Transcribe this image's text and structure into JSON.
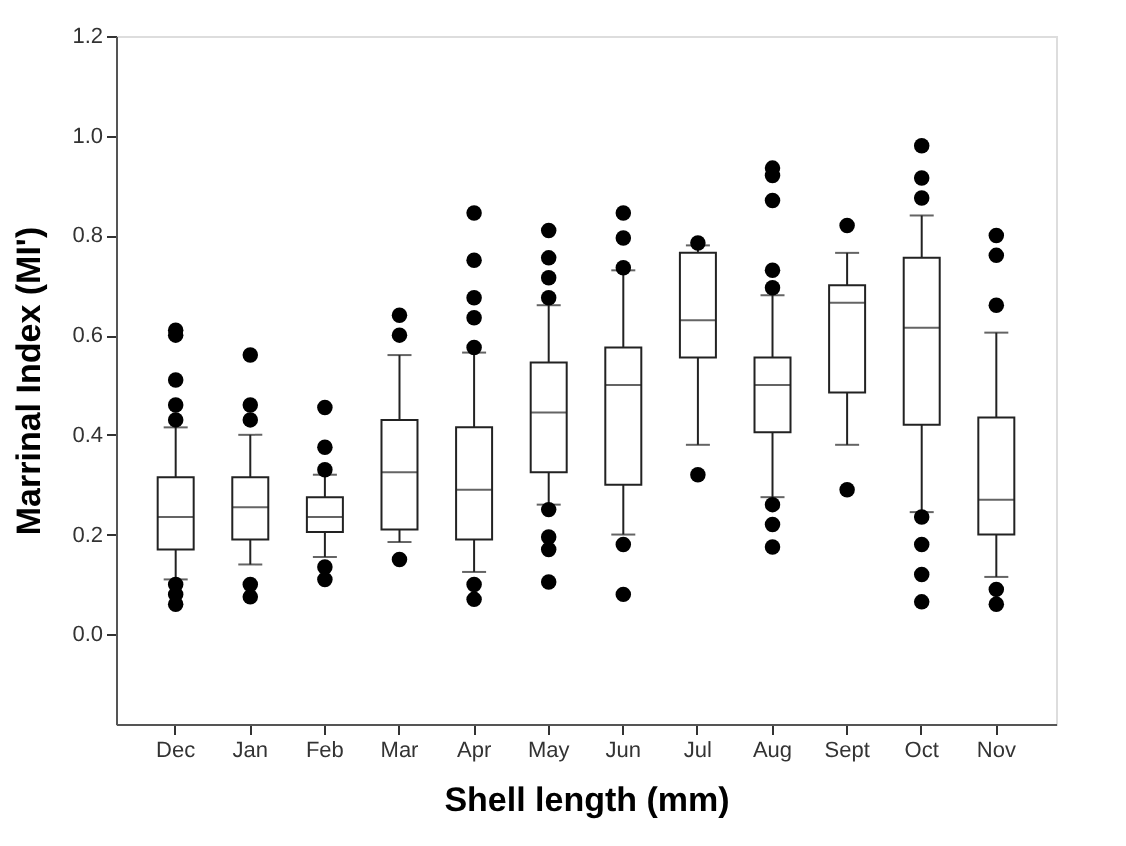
{
  "chart_data": {
    "type": "box",
    "xlabel": "Shell length (mm)",
    "ylabel": "Marrinal Index (MI')",
    "categories": [
      "Dec",
      "Jan",
      "Feb",
      "Mar",
      "Apr",
      "May",
      "Jun",
      "Jul",
      "Aug",
      "Sept",
      "Oct",
      "Nov"
    ],
    "boxes": [
      {
        "low": 0.11,
        "q1": 0.17,
        "median": 0.235,
        "q3": 0.315,
        "high": 0.415,
        "outliers": [
          0.61,
          0.6,
          0.51,
          0.46,
          0.43,
          0.1,
          0.08,
          0.06
        ]
      },
      {
        "low": 0.14,
        "q1": 0.19,
        "median": 0.255,
        "q3": 0.315,
        "high": 0.4,
        "outliers": [
          0.56,
          0.46,
          0.43,
          0.1,
          0.075
        ]
      },
      {
        "low": 0.155,
        "q1": 0.205,
        "median": 0.235,
        "q3": 0.275,
        "high": 0.32,
        "outliers": [
          0.455,
          0.375,
          0.33,
          0.135,
          0.11
        ]
      },
      {
        "low": 0.185,
        "q1": 0.21,
        "median": 0.325,
        "q3": 0.43,
        "high": 0.56,
        "outliers": [
          0.64,
          0.6,
          0.15
        ]
      },
      {
        "low": 0.125,
        "q1": 0.19,
        "median": 0.29,
        "q3": 0.415,
        "high": 0.565,
        "outliers": [
          0.845,
          0.75,
          0.675,
          0.635,
          0.575,
          0.1,
          0.07
        ]
      },
      {
        "low": 0.26,
        "q1": 0.325,
        "median": 0.445,
        "q3": 0.545,
        "high": 0.66,
        "outliers": [
          0.81,
          0.755,
          0.715,
          0.675,
          0.25,
          0.195,
          0.17,
          0.105
        ]
      },
      {
        "low": 0.2,
        "q1": 0.3,
        "median": 0.5,
        "q3": 0.575,
        "high": 0.73,
        "outliers": [
          0.845,
          0.795,
          0.735,
          0.18,
          0.08
        ]
      },
      {
        "low": 0.38,
        "q1": 0.555,
        "median": 0.63,
        "q3": 0.765,
        "high": 0.78,
        "outliers": [
          0.785,
          0.32
        ]
      },
      {
        "low": 0.275,
        "q1": 0.405,
        "median": 0.5,
        "q3": 0.555,
        "high": 0.68,
        "outliers": [
          0.935,
          0.92,
          0.87,
          0.73,
          0.695,
          0.26,
          0.22,
          0.175
        ]
      },
      {
        "low": 0.38,
        "q1": 0.485,
        "median": 0.665,
        "q3": 0.7,
        "high": 0.765,
        "outliers": [
          0.82,
          0.29
        ]
      },
      {
        "low": 0.245,
        "q1": 0.42,
        "median": 0.615,
        "q3": 0.755,
        "high": 0.84,
        "outliers": [
          0.98,
          0.915,
          0.875,
          0.235,
          0.18,
          0.12,
          0.065
        ]
      },
      {
        "low": 0.115,
        "q1": 0.2,
        "median": 0.27,
        "q3": 0.435,
        "high": 0.605,
        "outliers": [
          0.8,
          0.76,
          0.66,
          0.09,
          0.06
        ]
      }
    ],
    "ylim": [
      -0.18,
      1.2
    ],
    "yticks": [
      {
        "value": 0,
        "label": "0.0"
      },
      0.2,
      0.4,
      0.6,
      0.8,
      {
        "value": 1,
        "label": "1.0"
      },
      1.2
    ],
    "grid": false
  }
}
